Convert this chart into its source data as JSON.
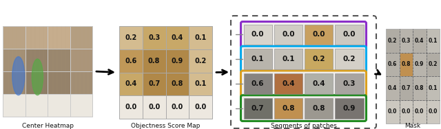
{
  "panel_labels": [
    "Center Heatmap",
    "Objectness Score Map",
    "Segments of patches",
    "Mask"
  ],
  "score_map": [
    [
      "0.2",
      "0.3",
      "0.4",
      "0.1"
    ],
    [
      "0.6",
      "0.8",
      "0.9",
      "0.2"
    ],
    [
      "0.4",
      "0.7",
      "0.8",
      "0.1"
    ],
    [
      "0.0",
      "0.0",
      "0.0",
      "0.0"
    ]
  ],
  "segments": [
    {
      "scores": [
        "0.0",
        "0.0",
        "0.0",
        "0.0"
      ],
      "color": "#8B2FC9"
    },
    {
      "scores": [
        "0.1",
        "0.1",
        "0.2",
        "0.2"
      ],
      "color": "#00AAEE"
    },
    {
      "scores": [
        "0.6",
        "0.4",
        "0.4",
        "0.3"
      ],
      "color": "#DAA020"
    },
    {
      "scores": [
        "0.7",
        "0.8",
        "0.8",
        "0.9"
      ],
      "color": "#228B22"
    }
  ],
  "mask_scores": [
    [
      "0.2",
      "0.3",
      "0.4",
      "0.1"
    ],
    [
      "0.6",
      "0.8",
      "0.9",
      "0.2"
    ],
    [
      "0.4",
      "0.7",
      "0.8",
      "0.1"
    ],
    [
      "0.0",
      "0.0",
      "0.0",
      "0.0"
    ]
  ],
  "bg_color": "#ffffff",
  "arrow_color": "#111111",
  "dashed_box_color": "#555555"
}
